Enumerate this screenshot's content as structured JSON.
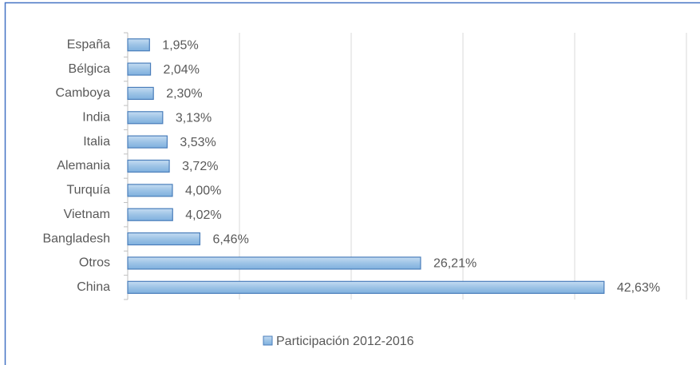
{
  "chart_data": {
    "type": "bar",
    "orientation": "horizontal",
    "categories": [
      "España",
      "Bélgica",
      "Camboya",
      "India",
      "Italia",
      "Alemania",
      "Turquía",
      "Vietnam",
      "Bangladesh",
      "Otros",
      "China"
    ],
    "series": [
      {
        "name": "Participación 2012-2016",
        "color": "#9dc3e6",
        "values": [
          1.95,
          2.04,
          2.3,
          3.13,
          3.53,
          3.72,
          4.0,
          4.02,
          6.46,
          26.21,
          42.63
        ],
        "value_labels": [
          "1,95%",
          "2,04%",
          "2,30%",
          "3,13%",
          "3,53%",
          "3,72%",
          "4,00%",
          "4,02%",
          "6,46%",
          "26,21%",
          "42,63%"
        ]
      }
    ],
    "xlim": [
      0,
      50
    ],
    "xticks": [
      0,
      10,
      20,
      30,
      40,
      50
    ],
    "grid": true,
    "legend": "bottom"
  }
}
